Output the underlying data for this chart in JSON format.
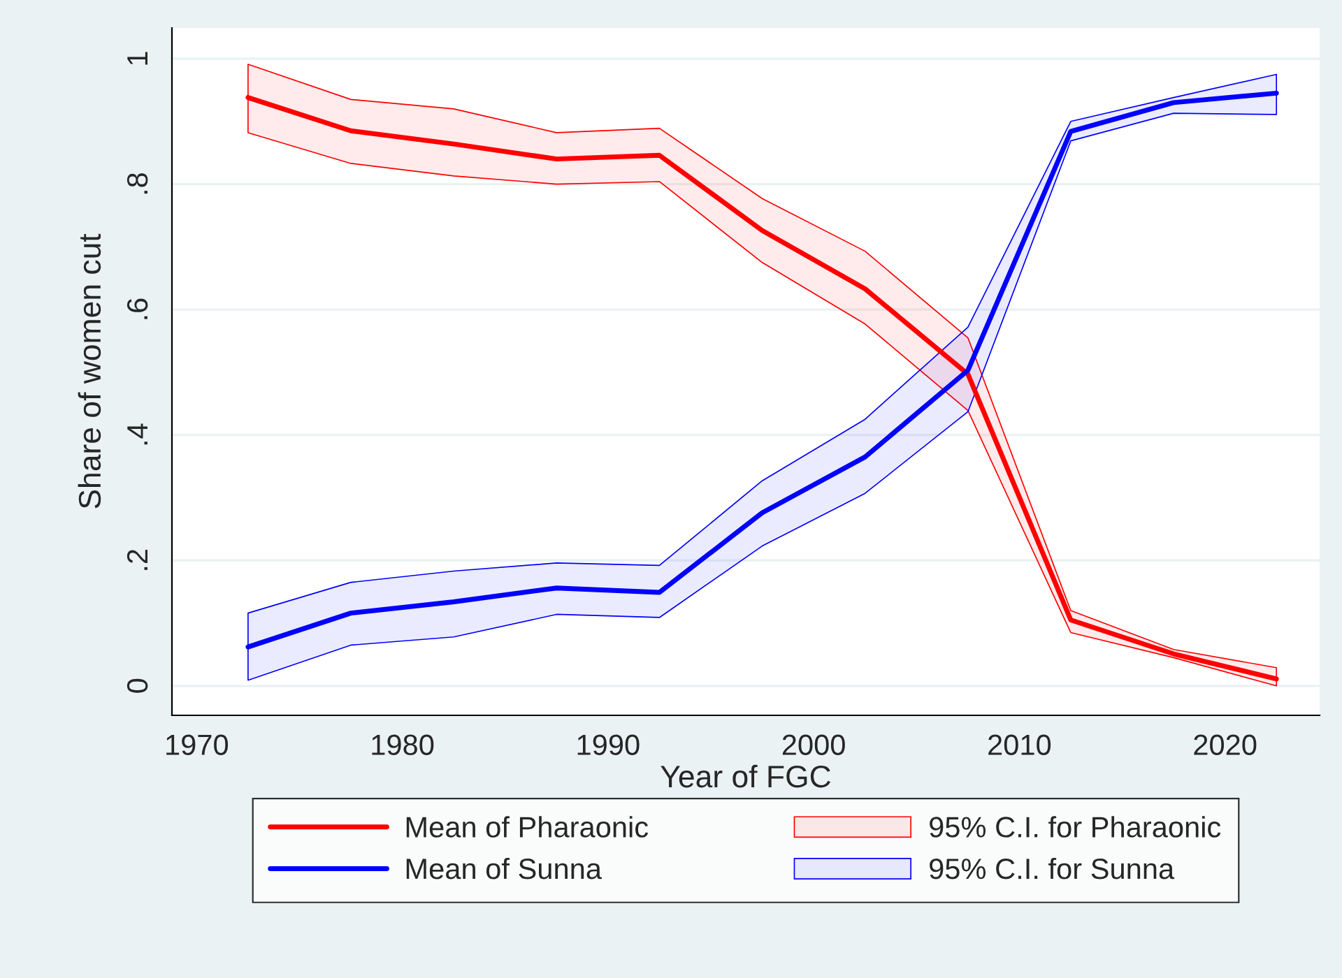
{
  "chart_data": {
    "type": "line",
    "xlabel": "Year of FGC",
    "ylabel": "Share of women cut",
    "x": [
      1972.5,
      1977.5,
      1982.5,
      1987.5,
      1992.5,
      1997.5,
      2002.5,
      2007.5,
      2012.5,
      2017.5,
      2022.5
    ],
    "series": [
      {
        "name": "Mean of Pharaonic",
        "color": "#ff0000",
        "values": [
          0.938,
          0.885,
          0.864,
          0.84,
          0.846,
          0.726,
          0.633,
          0.497,
          0.105,
          0.051,
          0.011
        ],
        "upper": [
          0.991,
          0.935,
          0.92,
          0.882,
          0.889,
          0.777,
          0.693,
          0.555,
          0.12,
          0.058,
          0.029
        ],
        "lower": [
          0.882,
          0.833,
          0.813,
          0.8,
          0.804,
          0.675,
          0.577,
          0.439,
          0.085,
          0.045,
          0.0
        ]
      },
      {
        "name": "Mean of Sunna",
        "color": "#0000ff",
        "values": [
          0.062,
          0.116,
          0.134,
          0.156,
          0.149,
          0.276,
          0.365,
          0.503,
          0.884,
          0.93,
          0.945
        ],
        "upper": [
          0.116,
          0.165,
          0.183,
          0.196,
          0.192,
          0.327,
          0.425,
          0.572,
          0.9,
          0.938,
          0.975
        ],
        "lower": [
          0.009,
          0.065,
          0.078,
          0.114,
          0.109,
          0.223,
          0.307,
          0.437,
          0.869,
          0.913,
          0.911
        ]
      }
    ],
    "annotations": [
      "95% C.I. for Pharaonic",
      "95% C.I. for Sunna"
    ],
    "xlim": [
      1968.8,
      2024.6
    ],
    "xticks": [
      1970,
      1980,
      1990,
      2000,
      2010,
      2020
    ],
    "ylim": [
      -0.047,
      1.049
    ],
    "yticks": [
      {
        "value": 0,
        "label": "0"
      },
      {
        "value": 0.2,
        "label": ".2"
      },
      {
        "value": 0.4,
        "label": ".4"
      },
      {
        "value": 0.6,
        "label": ".6"
      },
      {
        "value": 0.8,
        "label": ".8"
      },
      {
        "value": 1,
        "label": "1"
      }
    ],
    "grid": "y",
    "legend": "bottom",
    "line_style": "solid",
    "marker": "none"
  }
}
